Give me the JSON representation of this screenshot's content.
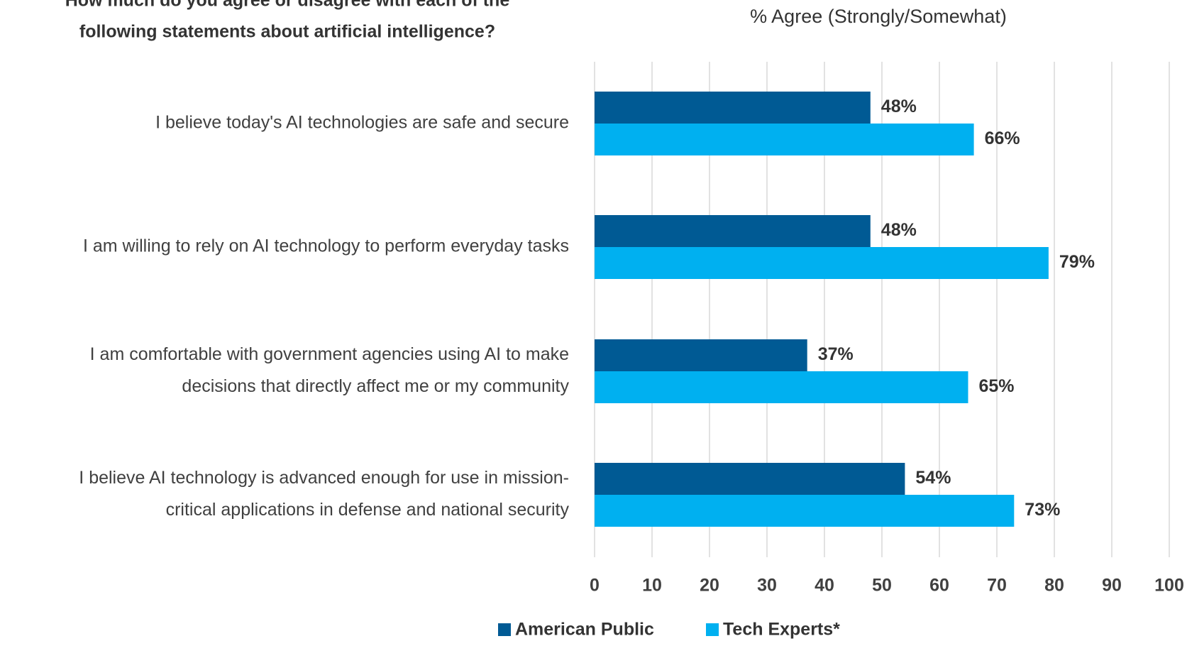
{
  "chart_data": {
    "type": "hbar",
    "title": [
      "How much do you agree or disagree with each of the",
      "following statements about artificial intelligence?"
    ],
    "subtitle": "% Agree (Strongly/Somewhat)",
    "categories": [
      [
        "I believe today's AI technologies are safe and secure"
      ],
      [
        "I am willing to rely on AI technology to perform everyday tasks"
      ],
      [
        "I am comfortable with government agencies using AI to make",
        "decisions that directly affect me or my community"
      ],
      [
        "I believe AI technology is advanced enough for use in mission-",
        "critical applications in defense and national security"
      ]
    ],
    "series": [
      {
        "name": "American Public",
        "color": "#005a94",
        "values": [
          48,
          48,
          37,
          54
        ],
        "value_labels": [
          "48%",
          "48%",
          "37%",
          "54%"
        ]
      },
      {
        "name": "Tech Experts*",
        "color": "#00b0f0",
        "values": [
          66,
          79,
          65,
          73
        ],
        "value_labels": [
          "66%",
          "79%",
          "65%",
          "73%"
        ]
      }
    ],
    "xlim": [
      0,
      100
    ],
    "xticks": [
      0,
      10,
      20,
      30,
      40,
      50,
      60,
      70,
      80,
      90,
      100
    ],
    "grid": true,
    "legend": "bottom"
  }
}
